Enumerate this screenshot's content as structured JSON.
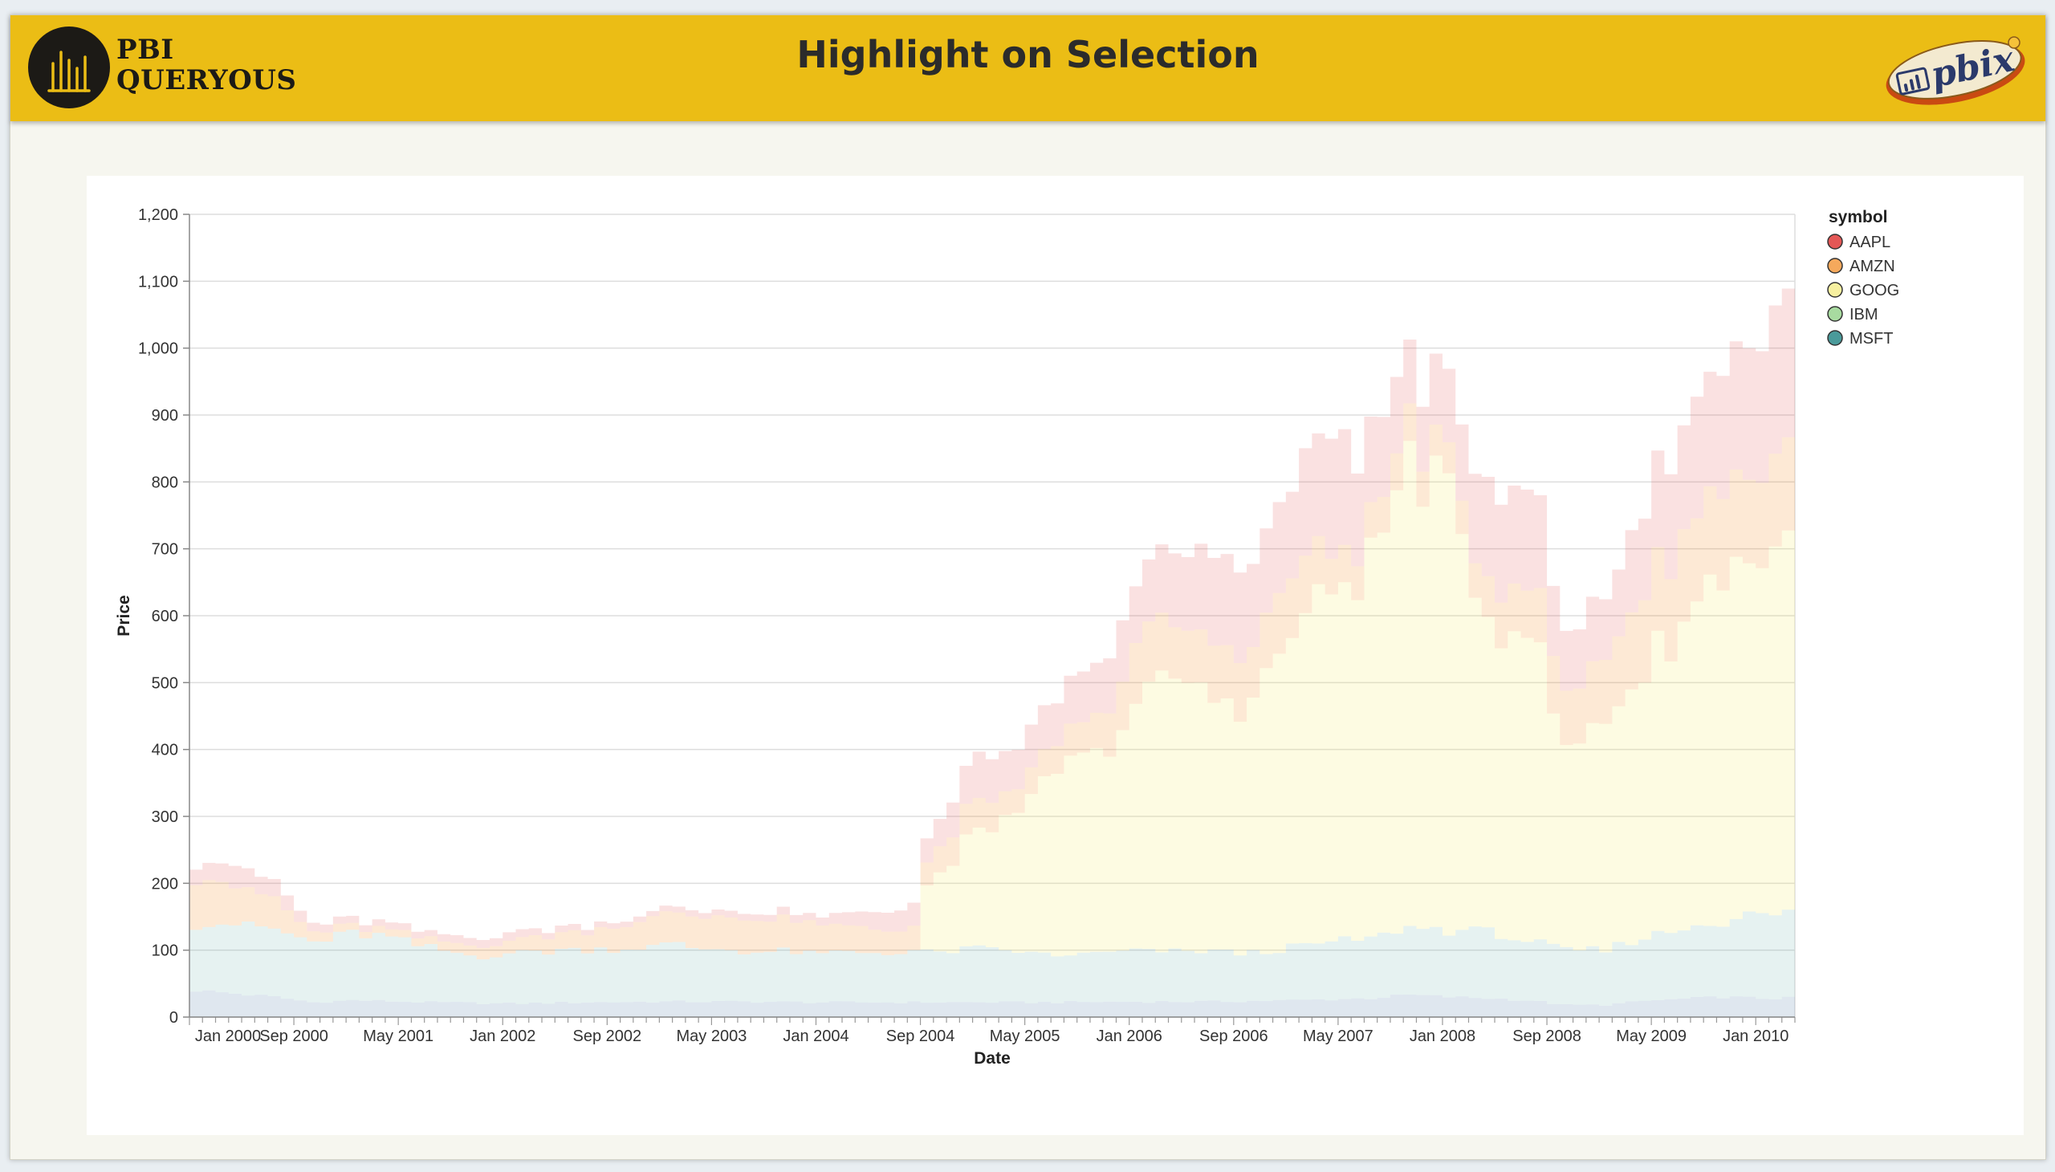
{
  "header": {
    "title": "Highlight on Selection",
    "logo_line1": "PBI",
    "logo_line2": "QUERYOUS",
    "badge_text": "pbix"
  },
  "chart_data": {
    "type": "area",
    "stacked": true,
    "xlabel": "Date",
    "ylabel": "Price",
    "ylim": [
      0,
      1200
    ],
    "yticks": [
      0,
      100,
      200,
      300,
      400,
      500,
      600,
      700,
      800,
      900,
      1000,
      1100,
      1200
    ],
    "xlim": [
      "2000-01-01",
      "2010-03-01"
    ],
    "xticks": [
      "Jan 2000",
      "Sep 2000",
      "May 2001",
      "Jan 2002",
      "Sep 2002",
      "May 2003",
      "Jan 2004",
      "Sep 2004",
      "May 2005",
      "Jan 2006",
      "Sep 2006",
      "May 2007",
      "Jan 2008",
      "Sep 2008",
      "May 2009",
      "Jan 2010"
    ],
    "grid": true,
    "legend": {
      "title": "symbol",
      "placement": "right"
    },
    "colors": {
      "AAPL": "#e45756",
      "AMZN": "#f58518",
      "GOOG": "#f2e85c",
      "IBM": "#72b7b2",
      "MSFT": "#4c78a8"
    },
    "legend_swatch_colors": [
      "#e45756",
      "#f5a95c",
      "#f7f0a0",
      "#a8dba0",
      "#4a9a9a"
    ],
    "series_order_bottom_to_top": [
      "MSFT",
      "IBM",
      "GOOG",
      "AMZN",
      "AAPL"
    ],
    "series": [
      {
        "name": "AAPL",
        "anchors": [
          [
            0,
            25
          ],
          [
            3,
            32
          ],
          [
            6,
            25
          ],
          [
            9,
            12
          ],
          [
            12,
            10
          ],
          [
            18,
            10
          ],
          [
            24,
            12
          ],
          [
            30,
            8
          ],
          [
            36,
            8
          ],
          [
            42,
            10
          ],
          [
            48,
            12
          ],
          [
            54,
            32
          ],
          [
            57,
            40
          ],
          [
            60,
            72
          ],
          [
            63,
            62
          ],
          [
            66,
            62
          ],
          [
            69,
            75
          ],
          [
            72,
            92
          ],
          [
            75,
            110
          ],
          [
            78,
            125
          ],
          [
            81,
            130
          ],
          [
            84,
            135
          ],
          [
            87,
            180
          ],
          [
            90,
            130
          ],
          [
            93,
            100
          ],
          [
            96,
            110
          ],
          [
            99,
            140
          ],
          [
            102,
            150
          ],
          [
            105,
            90
          ],
          [
            108,
            95
          ],
          [
            111,
            130
          ],
          [
            114,
            165
          ],
          [
            117,
            190
          ],
          [
            120,
            210
          ],
          [
            122,
            230
          ],
          [
            123,
            195
          ]
        ]
      },
      {
        "name": "AMZN",
        "anchors": [
          [
            0,
            70
          ],
          [
            3,
            60
          ],
          [
            6,
            45
          ],
          [
            9,
            15
          ],
          [
            12,
            10
          ],
          [
            18,
            12
          ],
          [
            24,
            18
          ],
          [
            30,
            28
          ],
          [
            36,
            45
          ],
          [
            42,
            50
          ],
          [
            48,
            43
          ],
          [
            54,
            35
          ],
          [
            57,
            38
          ],
          [
            60,
            45
          ],
          [
            63,
            35
          ],
          [
            66,
            43
          ],
          [
            69,
            50
          ],
          [
            72,
            90
          ],
          [
            75,
            80
          ],
          [
            78,
            85
          ],
          [
            81,
            82
          ],
          [
            84,
            95
          ],
          [
            87,
            55
          ],
          [
            90,
            50
          ],
          [
            93,
            60
          ],
          [
            96,
            45
          ],
          [
            99,
            60
          ],
          [
            102,
            75
          ],
          [
            105,
            85
          ],
          [
            108,
            95
          ],
          [
            111,
            115
          ],
          [
            114,
            130
          ],
          [
            117,
            135
          ],
          [
            120,
            130
          ],
          [
            123,
            130
          ]
        ]
      },
      {
        "name": "GOOG",
        "anchors": [
          [
            55,
            0
          ],
          [
            56,
            102
          ],
          [
            58,
            130
          ],
          [
            60,
            180
          ],
          [
            63,
            195
          ],
          [
            66,
            280
          ],
          [
            69,
            290
          ],
          [
            72,
            365
          ],
          [
            75,
            410
          ],
          [
            78,
            375
          ],
          [
            81,
            380
          ],
          [
            84,
            470
          ],
          [
            87,
            520
          ],
          [
            90,
            560
          ],
          [
            93,
            700
          ],
          [
            96,
            640
          ],
          [
            99,
            465
          ],
          [
            102,
            480
          ],
          [
            105,
            290
          ],
          [
            108,
            350
          ],
          [
            111,
            400
          ],
          [
            114,
            460
          ],
          [
            117,
            535
          ],
          [
            120,
            530
          ],
          [
            123,
            560
          ]
        ]
      },
      {
        "name": "IBM",
        "anchors": [
          [
            0,
            100
          ],
          [
            3,
            105
          ],
          [
            6,
            100
          ],
          [
            9,
            90
          ],
          [
            12,
            100
          ],
          [
            15,
            95
          ],
          [
            18,
            80
          ],
          [
            21,
            70
          ],
          [
            24,
            75
          ],
          [
            27,
            78
          ],
          [
            30,
            80
          ],
          [
            33,
            80
          ],
          [
            36,
            85
          ],
          [
            39,
            80
          ],
          [
            42,
            75
          ],
          [
            45,
            75
          ],
          [
            48,
            72
          ],
          [
            51,
            75
          ],
          [
            54,
            75
          ],
          [
            57,
            75
          ],
          [
            60,
            80
          ],
          [
            63,
            75
          ],
          [
            66,
            70
          ],
          [
            69,
            72
          ],
          [
            72,
            76
          ],
          [
            75,
            75
          ],
          [
            78,
            75
          ],
          [
            81,
            72
          ],
          [
            84,
            78
          ],
          [
            87,
            86
          ],
          [
            90,
            90
          ],
          [
            93,
            100
          ],
          [
            96,
            100
          ],
          [
            99,
            100
          ],
          [
            102,
            90
          ],
          [
            105,
            80
          ],
          [
            108,
            82
          ],
          [
            111,
            95
          ],
          [
            114,
            105
          ],
          [
            117,
            115
          ],
          [
            120,
            125
          ],
          [
            123,
            125
          ]
        ]
      },
      {
        "name": "MSFT",
        "anchors": [
          [
            0,
            40
          ],
          [
            3,
            35
          ],
          [
            6,
            30
          ],
          [
            9,
            22
          ],
          [
            12,
            25
          ],
          [
            18,
            22
          ],
          [
            24,
            20
          ],
          [
            30,
            22
          ],
          [
            36,
            23
          ],
          [
            42,
            23
          ],
          [
            48,
            22
          ],
          [
            54,
            22
          ],
          [
            60,
            22
          ],
          [
            66,
            22
          ],
          [
            72,
            23
          ],
          [
            78,
            23
          ],
          [
            84,
            25
          ],
          [
            90,
            28
          ],
          [
            93,
            33
          ],
          [
            96,
            30
          ],
          [
            99,
            28
          ],
          [
            102,
            25
          ],
          [
            105,
            18
          ],
          [
            108,
            18
          ],
          [
            111,
            24
          ],
          [
            114,
            27
          ],
          [
            117,
            30
          ],
          [
            120,
            28
          ],
          [
            123,
            28
          ]
        ]
      }
    ]
  }
}
